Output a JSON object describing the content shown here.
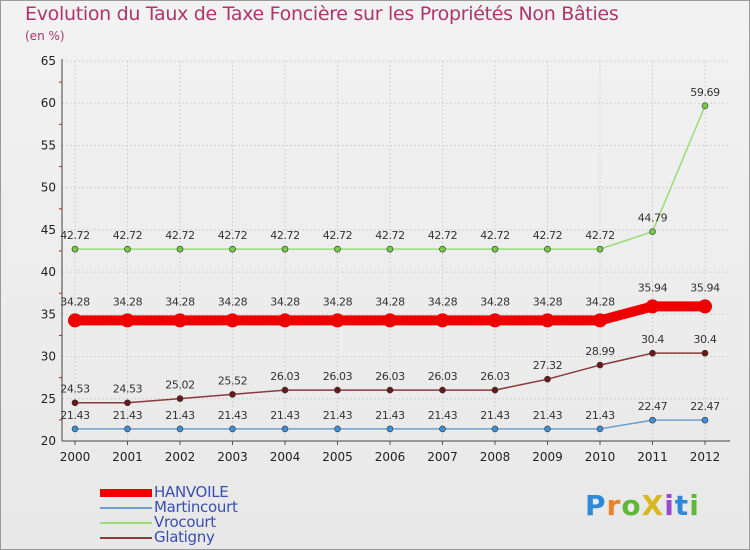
{
  "title": "Evolution du Taux de Taxe Foncière sur les Propriétés Non Bâties",
  "unit_label": "(en %)",
  "logo": {
    "text": "ProXiti",
    "colors": [
      "#2e8ad8",
      "#e8842a",
      "#5fb83a",
      "#d8b820",
      "#9a4ad0",
      "#2e8ad8",
      "#5fb83a"
    ]
  },
  "chart_data": {
    "type": "line",
    "title": "Evolution du Taux de Taxe Foncière sur les Propriétés Non Bâties",
    "ylabel": "(en %)",
    "xlabel": "",
    "ylim": [
      20,
      65
    ],
    "yticks": [
      20,
      25,
      30,
      35,
      40,
      45,
      50,
      55,
      60,
      65
    ],
    "grid": true,
    "categories": [
      "2000",
      "2001",
      "2002",
      "2003",
      "2004",
      "2005",
      "2006",
      "2007",
      "2008",
      "2009",
      "2010",
      "2011",
      "2012"
    ],
    "series": [
      {
        "name": "HANVOILE",
        "color": "#ee0000",
        "emphasis": true,
        "values": [
          34.28,
          34.28,
          34.28,
          34.28,
          34.28,
          34.28,
          34.28,
          34.28,
          34.28,
          34.28,
          34.28,
          35.94,
          35.94
        ],
        "labels": [
          "34.28",
          "34.28",
          "34.28",
          "34.28",
          "34.28",
          "34.28",
          "34.28",
          "34.28",
          "34.28",
          "34.28",
          "34.28",
          "35.94",
          "35.94"
        ]
      },
      {
        "name": "Martincourt",
        "color": "#6fa0cc",
        "marker": "#3f8fd8",
        "values": [
          21.43,
          21.43,
          21.43,
          21.43,
          21.43,
          21.43,
          21.43,
          21.43,
          21.43,
          21.43,
          21.43,
          22.47,
          22.47
        ],
        "labels": [
          "21.43",
          "21.43",
          "21.43",
          "21.43",
          "21.43",
          "21.43",
          "21.43",
          "21.43",
          "21.43",
          "21.43",
          "21.43",
          "22.47",
          "22.47"
        ]
      },
      {
        "name": "Vrocourt",
        "color": "#99dd77",
        "marker": "#77cc44",
        "values": [
          42.72,
          42.72,
          42.72,
          42.72,
          42.72,
          42.72,
          42.72,
          42.72,
          42.72,
          42.72,
          42.72,
          44.79,
          59.69
        ],
        "labels": [
          "42.72",
          "42.72",
          "42.72",
          "42.72",
          "42.72",
          "42.72",
          "42.72",
          "42.72",
          "42.72",
          "42.72",
          "42.72",
          "44.79",
          "59.69"
        ]
      },
      {
        "name": "Glatigny",
        "color": "#8a3a3a",
        "marker": "#6a1818",
        "values": [
          24.53,
          24.53,
          25.02,
          25.52,
          26.03,
          26.03,
          26.03,
          26.03,
          26.03,
          27.32,
          28.99,
          30.4,
          30.4
        ],
        "labels": [
          "24.53",
          "24.53",
          "25.02",
          "25.52",
          "26.03",
          "26.03",
          "26.03",
          "26.03",
          "26.03",
          "27.32",
          "28.99",
          "30.4",
          "30.4"
        ]
      }
    ],
    "legend_position": "bottom-left"
  }
}
